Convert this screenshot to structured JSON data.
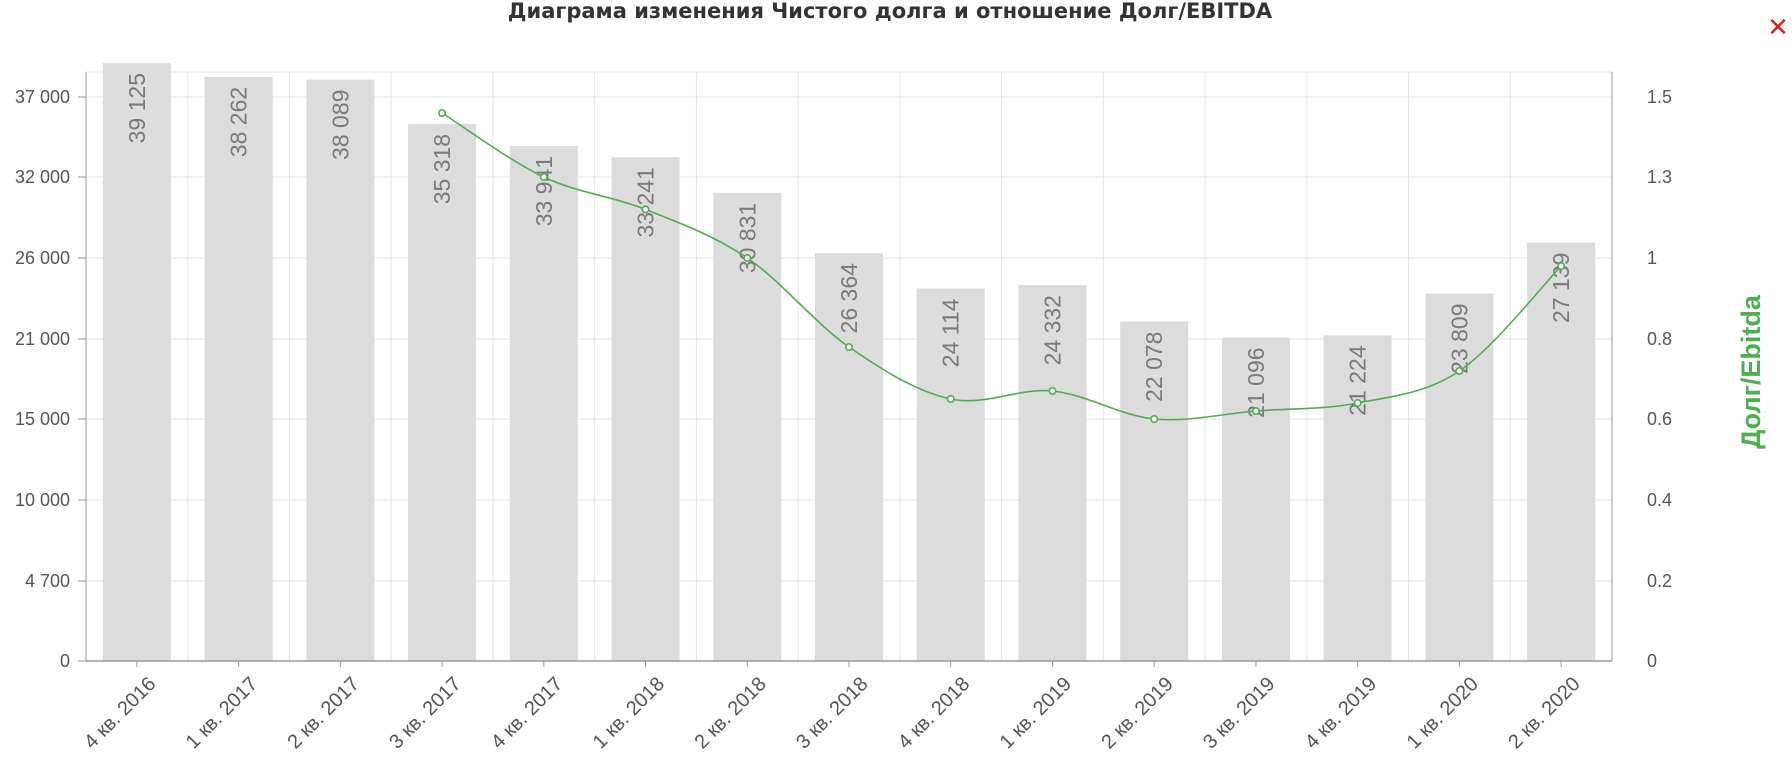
{
  "colors": {
    "bar": "#dcdcdc",
    "line": "#4caf50",
    "close": "#e02020",
    "grid": "#e6e6e6"
  },
  "close_icon": "close-icon",
  "chart_data": {
    "type": "bar",
    "title": "Диаграма изменения Чистого долга и отношение Долг/EBITDA",
    "categories": [
      "4 кв. 2016",
      "1 кв. 2017",
      "2 кв. 2017",
      "3 кв. 2017",
      "4 кв. 2017",
      "1 кв. 2018",
      "2 кв. 2018",
      "3 кв. 2018",
      "4 кв. 2018",
      "1 кв. 2019",
      "2 кв. 2019",
      "3 кв. 2019",
      "4 кв. 2019",
      "1 кв. 2020",
      "2 кв. 2020"
    ],
    "values": [
      39125,
      38262,
      38089,
      35318,
      33941,
      33241,
      30831,
      26364,
      24114,
      24332,
      22078,
      21096,
      21224,
      23809,
      27139
    ],
    "value_labels": [
      "39 125",
      "38 262",
      "38 089",
      "35 318",
      "33 941",
      "33 241",
      "30 831",
      "26 364",
      "24 114",
      "24 332",
      "22 078",
      "21 096",
      "21 224",
      "23 809",
      "27 139"
    ],
    "ratio": {
      "name": "Долг/Ebitda",
      "values": [
        null,
        null,
        null,
        1.46,
        1.3,
        1.18,
        1.0,
        0.78,
        0.65,
        0.67,
        0.6,
        0.62,
        0.64,
        0.72,
        0.98
      ]
    },
    "y_left": {
      "ticks": [
        "0",
        "4 700",
        "10 000",
        "15 000",
        "21 000",
        "26 000",
        "32 000",
        "37 000"
      ],
      "ylim": [
        0,
        39500
      ]
    },
    "y_right": {
      "label": "Долг/Ebitda",
      "ticks": [
        "0",
        "0.2",
        "0.4",
        "0.6",
        "0.8",
        "1",
        "1.3",
        "1.5"
      ],
      "ylim": [
        0,
        1.5
      ]
    },
    "grid": true
  }
}
